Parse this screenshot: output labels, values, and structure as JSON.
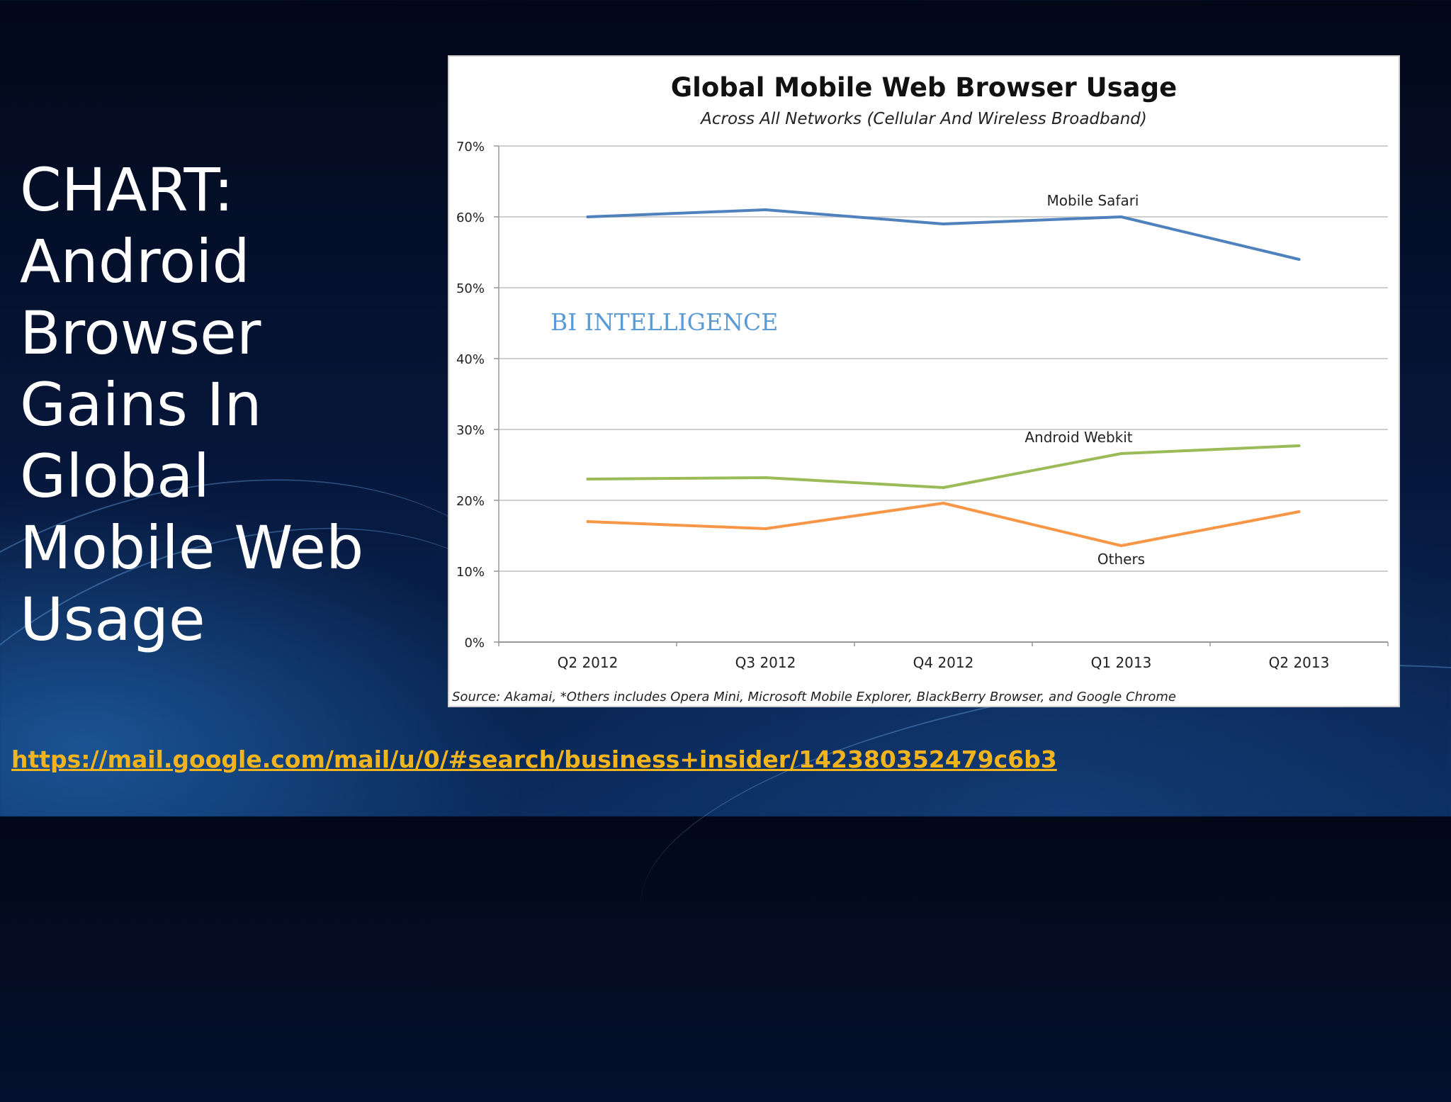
{
  "slide": {
    "title": "CHART:\nAndroid\nBrowser\nGains In\nGlobal\nMobile Web\nUsage",
    "link_text": "https://mail.google.com/mail/u/0/#search/business+insider/142380352479c6b3"
  },
  "chart_data": {
    "type": "line",
    "title": "Global Mobile Web Browser Usage",
    "subtitle": "Across All Networks (Cellular And Wireless Broadband)",
    "categories": [
      "Q2 2012",
      "Q3 2012",
      "Q4 2012",
      "Q1 2013",
      "Q2 2013"
    ],
    "series": [
      {
        "name": "Mobile Safari",
        "color": "#4f81bd",
        "values": [
          60,
          61,
          59,
          60,
          54
        ]
      },
      {
        "name": "Android Webkit",
        "color": "#9bbb59",
        "values": [
          23,
          23.2,
          21.8,
          26.6,
          27.7
        ]
      },
      {
        "name": "Others",
        "color": "#f79646",
        "values": [
          17,
          16,
          19.6,
          13.6,
          18.4
        ]
      }
    ],
    "ylim": [
      0,
      70
    ],
    "yticks": [
      "0%",
      "10%",
      "20%",
      "30%",
      "40%",
      "50%",
      "60%",
      "70%"
    ],
    "grid": true,
    "watermark": "BI INTELLIGENCE",
    "source": "Source: Akamai, *Others includes Opera Mini, Microsoft Mobile Explorer, BlackBerry Browser, and Google Chrome"
  }
}
